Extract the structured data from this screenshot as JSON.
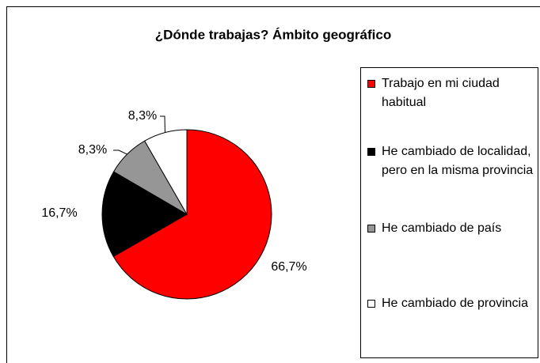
{
  "chart_data": {
    "type": "pie",
    "title": "¿Dónde trabajas? Ámbito geográfico",
    "categories": [
      "Trabajo en mi ciudad habitual",
      "He cambiado de localidad, pero en la misma provincia",
      "He cambiado de país",
      "He cambiado de provincia"
    ],
    "values": [
      66.7,
      16.7,
      8.3,
      8.3
    ],
    "value_labels": [
      "66,7%",
      "16,7%",
      "8,3%",
      "8,3%"
    ],
    "colors": [
      "#ff0000",
      "#000000",
      "#969696",
      "#ffffff"
    ],
    "legend": "right"
  }
}
